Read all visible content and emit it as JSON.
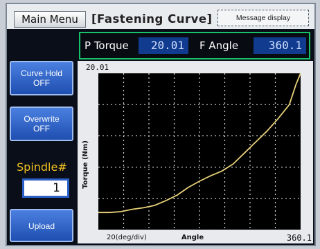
{
  "header": {
    "main_menu_label": "Main Menu",
    "title": "[Fastening Curve]",
    "message_display": "Message display"
  },
  "readout": {
    "p_torque_label": "P Torque",
    "p_torque_value": "20.01",
    "f_angle_label": "F Angle",
    "f_angle_value": "360.1"
  },
  "sidebar": {
    "curve_hold": {
      "line1": "Curve Hold",
      "line2": "OFF"
    },
    "overwrite": {
      "line1": "Overwrite",
      "line2": "OFF"
    },
    "spindle_label": "Spindle#",
    "spindle_value": "1",
    "upload_label": "Upload"
  },
  "colors": {
    "accent_green": "#18c26a",
    "button_blue": "#2f63c8",
    "value_blue": "#113b8f",
    "curve_yellow": "#e7d27a",
    "spindle_yellow": "#f0c020"
  },
  "chart_data": {
    "type": "line",
    "title": "",
    "xlabel": "Angle",
    "ylabel": "Torque (Nm)",
    "x_scale_label": "20(deg/div)",
    "y_max_label": "20.01",
    "x_max_label": "360.1",
    "xlim": [
      0,
      360.1
    ],
    "ylim": [
      0,
      20.01
    ],
    "grid": true,
    "x": [
      0,
      20,
      40,
      60,
      80,
      100,
      120,
      140,
      160,
      180,
      200,
      220,
      240,
      260,
      280,
      300,
      320,
      340,
      352,
      360.1
    ],
    "y": [
      2.2,
      2.2,
      2.3,
      2.6,
      2.8,
      3.1,
      3.7,
      4.4,
      5.4,
      6.2,
      6.9,
      7.5,
      8.4,
      9.8,
      11.2,
      12.6,
      14.2,
      16.0,
      18.6,
      20.01
    ]
  }
}
